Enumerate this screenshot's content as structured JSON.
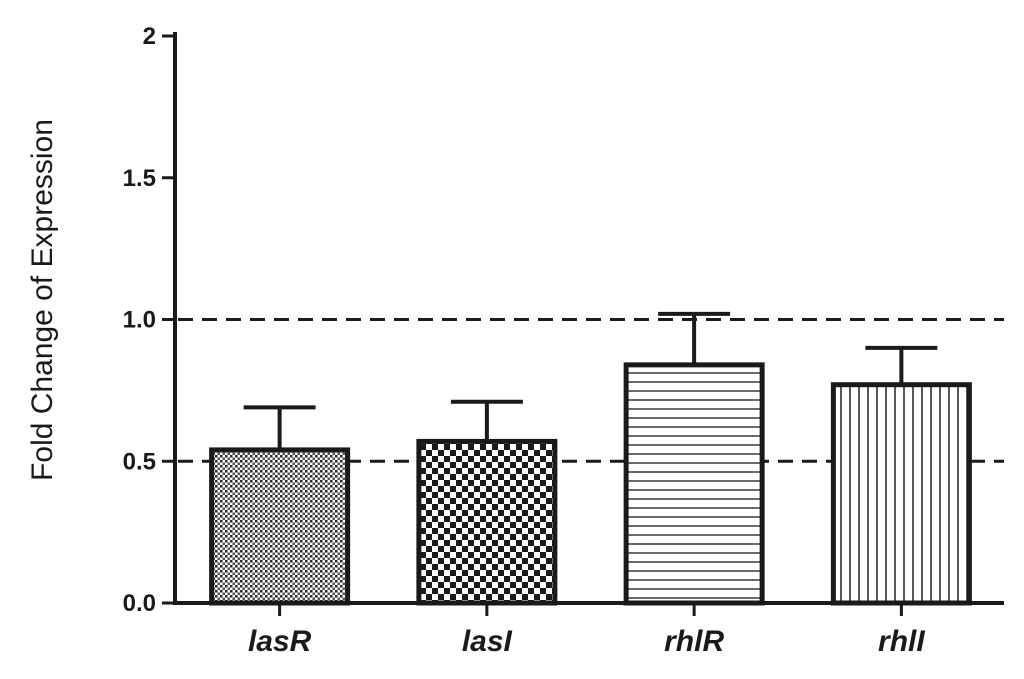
{
  "chart_data": {
    "type": "bar",
    "title": "",
    "xlabel": "",
    "ylabel": "Fold Change of Expression",
    "categories": [
      "lasR",
      "lasI",
      "rhlR",
      "rhlI"
    ],
    "values": [
      0.54,
      0.57,
      0.84,
      0.77
    ],
    "error_upper": [
      0.69,
      0.71,
      1.02,
      0.9
    ],
    "ylim": [
      0,
      2
    ],
    "y_ticks": [
      "0.0",
      "0.5",
      "1.0",
      "1.5",
      "2"
    ],
    "y_tick_values": [
      0,
      0.5,
      1.0,
      1.5,
      2
    ],
    "reference_lines": [
      1.0,
      0.5
    ],
    "bar_patterns": [
      "fine-crosshatch",
      "checkerboard",
      "horizontal-stripes",
      "vertical-stripes"
    ],
    "colors": {
      "ink": "#1a1a1a",
      "background": "#ffffff"
    },
    "grid": false,
    "legend": "none"
  }
}
